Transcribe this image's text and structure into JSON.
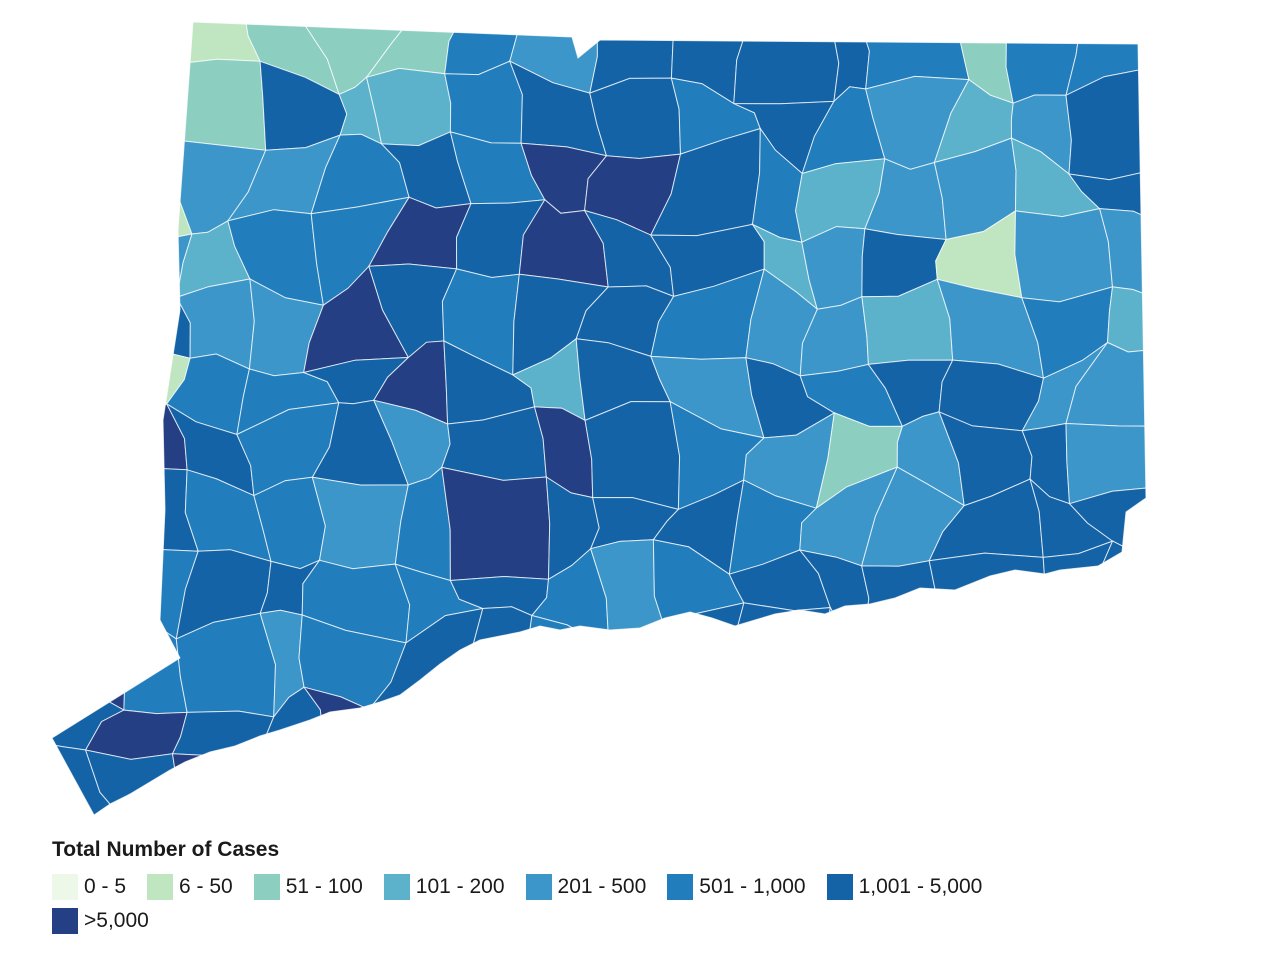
{
  "map": {
    "region": "Connecticut",
    "legend": {
      "title": "Total Number of Cases",
      "bins": [
        {
          "label": "0 - 5",
          "color": "#edf8e9"
        },
        {
          "label": "6 - 50",
          "color": "#bfe5c1"
        },
        {
          "label": "51 - 100",
          "color": "#8ccfc0"
        },
        {
          "label": "101 - 200",
          "color": "#5db2cb"
        },
        {
          "label": "201 - 500",
          "color": "#3c96c9"
        },
        {
          "label": "501 - 1,000",
          "color": "#217dbb"
        },
        {
          "label": "1,001 - 5,000",
          "color": "#1563a7"
        },
        {
          "label": ">5,000",
          "color": "#253f85"
        }
      ]
    },
    "towns": [
      {
        "bin": 3
      },
      {
        "bin": 3
      },
      {
        "bin": 1
      },
      {
        "bin": 2
      },
      {
        "bin": 2
      },
      {
        "bin": 2
      },
      {
        "bin": 5
      },
      {
        "bin": 4
      },
      {
        "bin": 6
      },
      {
        "bin": 6
      },
      {
        "bin": 6
      },
      {
        "bin": 6
      },
      {
        "bin": 5
      },
      {
        "bin": 2
      },
      {
        "bin": 5
      },
      {
        "bin": 5
      },
      {
        "bin": 3
      },
      {
        "bin": 1
      },
      {
        "bin": 2
      },
      {
        "bin": 6
      },
      {
        "bin": 3
      },
      {
        "bin": 3
      },
      {
        "bin": 5
      },
      {
        "bin": 6
      },
      {
        "bin": 6
      },
      {
        "bin": 5
      },
      {
        "bin": 6
      },
      {
        "bin": 5
      },
      {
        "bin": 4
      },
      {
        "bin": 3
      },
      {
        "bin": 4
      },
      {
        "bin": 6
      },
      {
        "bin": 3
      },
      {
        "bin": 1
      },
      {
        "bin": 4
      },
      {
        "bin": 4
      },
      {
        "bin": 5
      },
      {
        "bin": 6
      },
      {
        "bin": 5
      },
      {
        "bin": 7
      },
      {
        "bin": 7
      },
      {
        "bin": 6
      },
      {
        "bin": 5
      },
      {
        "bin": 3
      },
      {
        "bin": 4
      },
      {
        "bin": 4
      },
      {
        "bin": 3
      },
      {
        "bin": 6
      },
      {
        "bin": 3
      },
      {
        "bin": 4
      },
      {
        "bin": 3
      },
      {
        "bin": 5
      },
      {
        "bin": 5
      },
      {
        "bin": 7
      },
      {
        "bin": 6
      },
      {
        "bin": 7
      },
      {
        "bin": 6
      },
      {
        "bin": 6
      },
      {
        "bin": 3
      },
      {
        "bin": 4
      },
      {
        "bin": 6
      },
      {
        "bin": 1
      },
      {
        "bin": 4
      },
      {
        "bin": 4
      },
      {
        "bin": 3
      },
      {
        "bin": 6
      },
      {
        "bin": 4
      },
      {
        "bin": 4
      },
      {
        "bin": 7
      },
      {
        "bin": 6
      },
      {
        "bin": 5
      },
      {
        "bin": 6
      },
      {
        "bin": 6
      },
      {
        "bin": 5
      },
      {
        "bin": 4
      },
      {
        "bin": 4
      },
      {
        "bin": 3
      },
      {
        "bin": 4
      },
      {
        "bin": 5
      },
      {
        "bin": 3
      },
      {
        "bin": 6
      },
      {
        "bin": 1
      },
      {
        "bin": 5
      },
      {
        "bin": 5
      },
      {
        "bin": 6
      },
      {
        "bin": 7
      },
      {
        "bin": 6
      },
      {
        "bin": 3
      },
      {
        "bin": 6
      },
      {
        "bin": 4
      },
      {
        "bin": 6
      },
      {
        "bin": 5
      },
      {
        "bin": 6
      },
      {
        "bin": 6
      },
      {
        "bin": 4
      },
      {
        "bin": 4
      },
      {
        "bin": 6
      },
      {
        "bin": 7
      },
      {
        "bin": 6
      },
      {
        "bin": 5
      },
      {
        "bin": 6
      },
      {
        "bin": 4
      },
      {
        "bin": 6
      },
      {
        "bin": 7
      },
      {
        "bin": 6
      },
      {
        "bin": 5
      },
      {
        "bin": 4
      },
      {
        "bin": 2
      },
      {
        "bin": 4
      },
      {
        "bin": 6
      },
      {
        "bin": 6
      },
      {
        "bin": 4
      },
      {
        "bin": 6
      },
      {
        "bin": 6
      },
      {
        "bin": 5
      },
      {
        "bin": 5
      },
      {
        "bin": 4
      },
      {
        "bin": 5
      },
      {
        "bin": 7
      },
      {
        "bin": 6
      },
      {
        "bin": 6
      },
      {
        "bin": 6
      },
      {
        "bin": 5
      },
      {
        "bin": 4
      },
      {
        "bin": 4
      },
      {
        "bin": 6
      },
      {
        "bin": 6
      },
      {
        "bin": 6
      },
      {
        "bin": 6
      },
      {
        "bin": 5
      },
      {
        "bin": 6
      },
      {
        "bin": 6
      },
      {
        "bin": 5
      },
      {
        "bin": 5
      },
      {
        "bin": 6
      },
      {
        "bin": 5
      },
      {
        "bin": 4
      },
      {
        "bin": 5
      },
      {
        "bin": 6
      },
      {
        "bin": 6
      },
      {
        "bin": 6
      },
      {
        "bin": 6
      },
      {
        "bin": 6
      },
      {
        "bin": 6
      },
      {
        "bin": 7
      },
      {
        "bin": 5
      },
      {
        "bin": 5
      },
      {
        "bin": 4
      },
      {
        "bin": 5
      },
      {
        "bin": 6
      },
      {
        "bin": 6
      },
      {
        "bin": 5
      },
      {
        "bin": 6
      },
      {
        "bin": 6
      },
      {
        "bin": 6
      },
      {
        "bin": 5
      },
      {
        "bin": 4
      },
      {
        "bin": 5
      },
      {
        "bin": 6
      },
      {
        "bin": 6
      },
      {
        "bin": 6
      },
      {
        "bin": 7
      },
      {
        "bin": 6
      },
      {
        "bin": 6
      },
      {
        "bin": 7
      },
      {
        "bin": 5
      },
      {
        "bin": 6
      },
      {
        "bin": 6
      },
      {
        "bin": 6
      },
      {
        "bin": 6
      },
      {
        "bin": 6
      },
      {
        "bin": 5
      },
      {
        "bin": 5
      },
      {
        "bin": 6
      },
      {
        "bin": 6
      },
      {
        "bin": 6
      },
      {
        "bin": 6
      },
      {
        "bin": 6
      },
      {
        "bin": 7
      },
      {
        "bin": 6
      },
      {
        "bin": 6
      },
      {
        "bin": 6
      },
      {
        "bin": 6
      },
      {
        "bin": 6
      },
      {
        "bin": 6
      },
      {
        "bin": 6
      },
      {
        "bin": 6
      },
      {
        "bin": 6
      },
      {
        "bin": 6
      },
      {
        "bin": 6
      },
      {
        "bin": 6
      },
      {
        "bin": 6
      }
    ]
  }
}
